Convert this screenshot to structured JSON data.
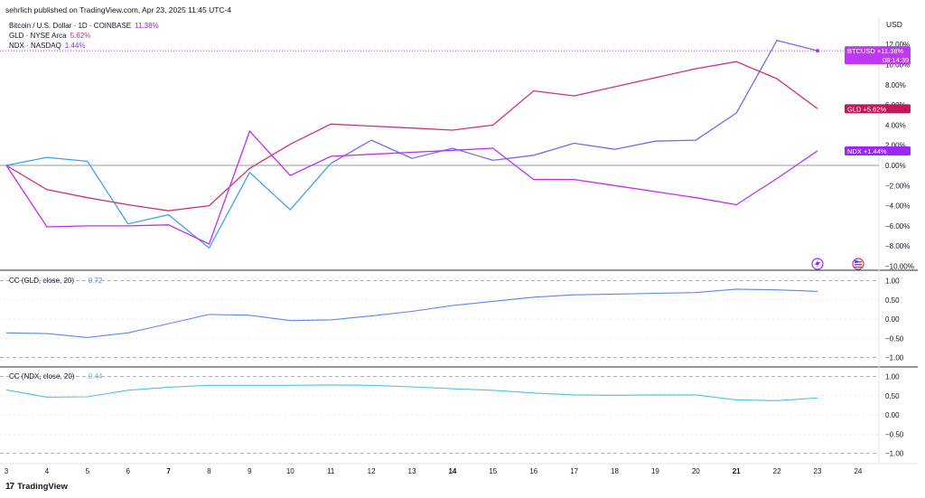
{
  "header": {
    "published_by": "sehrlich published on TradingView.com, Apr 23, 2025 11:45 UTC-4"
  },
  "legend": [
    {
      "label": "Bitcoin / U.S. Dollar · 1D · COINBASE",
      "value": "11.38%",
      "color": "#a020f0"
    },
    {
      "label": "GLD · NYSE Arca",
      "value": "5.62%",
      "color": "#d0257a"
    },
    {
      "label": "NDX · NASDAQ",
      "value": "1.44%",
      "color": "#a020f0"
    }
  ],
  "currency": "USD",
  "badges": {
    "btc": {
      "symbol": "BTCUSD",
      "value": "+11.38%",
      "countdown": "08:14:39",
      "color": "#c037f5"
    },
    "gld": {
      "symbol": "GLD",
      "value": "+5.62%",
      "color": "#c2185b"
    },
    "ndx": {
      "symbol": "NDX",
      "value": "+1.44%",
      "color": "#9c27f5"
    }
  },
  "brand": {
    "logo": "17",
    "name": "TradingView"
  },
  "colors": {
    "btc": "#c12cf2",
    "gld": "#d0307a",
    "ndx_line": "#7b68ee",
    "cc_gld": "#5b86f0",
    "cc_ndx": "#4cc4dd",
    "axis": "#787b86"
  },
  "chart_data": [
    {
      "type": "line",
      "title": "",
      "y_unit": "%",
      "ylim": [
        -10,
        12
      ],
      "y_ticks": [
        "12.00%",
        "10.00%",
        "8.00%",
        "6.00%",
        "4.00%",
        "2.00%",
        "0.00%",
        "−2.00%",
        "−4.00%",
        "−6.00%",
        "−8.00%",
        "−10.00%"
      ],
      "x": [
        "3",
        "4",
        "5",
        "6",
        "7",
        "8",
        "9",
        "10",
        "11",
        "12",
        "13",
        "14",
        "15",
        "16",
        "17",
        "18",
        "19",
        "20",
        "21",
        "22",
        "23"
      ],
      "x_ticks": [
        "3",
        "4",
        "5",
        "6",
        "7",
        "8",
        "9",
        "10",
        "11",
        "12",
        "13",
        "14",
        "15",
        "16",
        "17",
        "18",
        "19",
        "20",
        "21",
        "22",
        "23",
        "24"
      ],
      "x_ticks_bold": [
        "7",
        "14",
        "21"
      ],
      "series": [
        {
          "name": "Bitcoin / U.S. Dollar",
          "values": [
            0.0,
            0.8,
            0.4,
            -5.8,
            -4.9,
            -8.2,
            -0.7,
            -4.4,
            0.2,
            2.5,
            0.7,
            1.7,
            0.5,
            1.0,
            2.2,
            1.6,
            2.4,
            2.5,
            5.2,
            12.4,
            11.38
          ]
        },
        {
          "name": "GLD",
          "values": [
            0.0,
            -2.4,
            -3.2,
            -3.9,
            -4.5,
            -4.0,
            -0.3,
            2.1,
            4.1,
            3.9,
            3.7,
            3.5,
            4.0,
            7.4,
            6.9,
            7.8,
            8.7,
            9.6,
            10.3,
            8.6,
            5.62
          ]
        },
        {
          "name": "NDX",
          "values": [
            0.0,
            -6.1,
            -6.0,
            -6.0,
            -5.9,
            -7.8,
            3.4,
            -1.0,
            0.9,
            1.1,
            1.3,
            1.5,
            1.7,
            -1.4,
            -1.4,
            -2.0,
            -2.6,
            -3.2,
            -3.9,
            -1.3,
            1.44
          ]
        }
      ]
    },
    {
      "type": "line",
      "title": "CC (GLD, close, 20)",
      "value_label": "0.72",
      "ylim": [
        -1,
        1
      ],
      "y_ticks": [
        "1.00",
        "0.50",
        "0.00",
        "−0.50",
        "−1.00"
      ],
      "x": [
        "3",
        "4",
        "5",
        "6",
        "7",
        "8",
        "9",
        "10",
        "11",
        "12",
        "13",
        "14",
        "15",
        "16",
        "17",
        "18",
        "19",
        "20",
        "21",
        "22",
        "23"
      ],
      "series": [
        {
          "name": "CC (GLD, close, 20)",
          "values": [
            -0.36,
            -0.38,
            -0.48,
            -0.36,
            -0.12,
            0.12,
            0.1,
            -0.04,
            -0.02,
            0.08,
            0.2,
            0.35,
            0.46,
            0.57,
            0.63,
            0.65,
            0.67,
            0.69,
            0.78,
            0.76,
            0.72
          ]
        }
      ]
    },
    {
      "type": "line",
      "title": "CC (NDX, close, 20)",
      "value_label": "0.44",
      "ylim": [
        -1,
        1
      ],
      "y_ticks": [
        "1.00",
        "0.50",
        "0.00",
        "−0.50",
        "−1.00"
      ],
      "x": [
        "3",
        "4",
        "5",
        "6",
        "7",
        "8",
        "9",
        "10",
        "11",
        "12",
        "13",
        "14",
        "15",
        "16",
        "17",
        "18",
        "19",
        "20",
        "21",
        "22",
        "23"
      ],
      "series": [
        {
          "name": "CC (NDX, close, 20)",
          "values": [
            0.65,
            0.46,
            0.47,
            0.64,
            0.72,
            0.77,
            0.77,
            0.77,
            0.78,
            0.77,
            0.73,
            0.68,
            0.64,
            0.57,
            0.52,
            0.51,
            0.52,
            0.52,
            0.39,
            0.37,
            0.44
          ]
        }
      ]
    }
  ]
}
